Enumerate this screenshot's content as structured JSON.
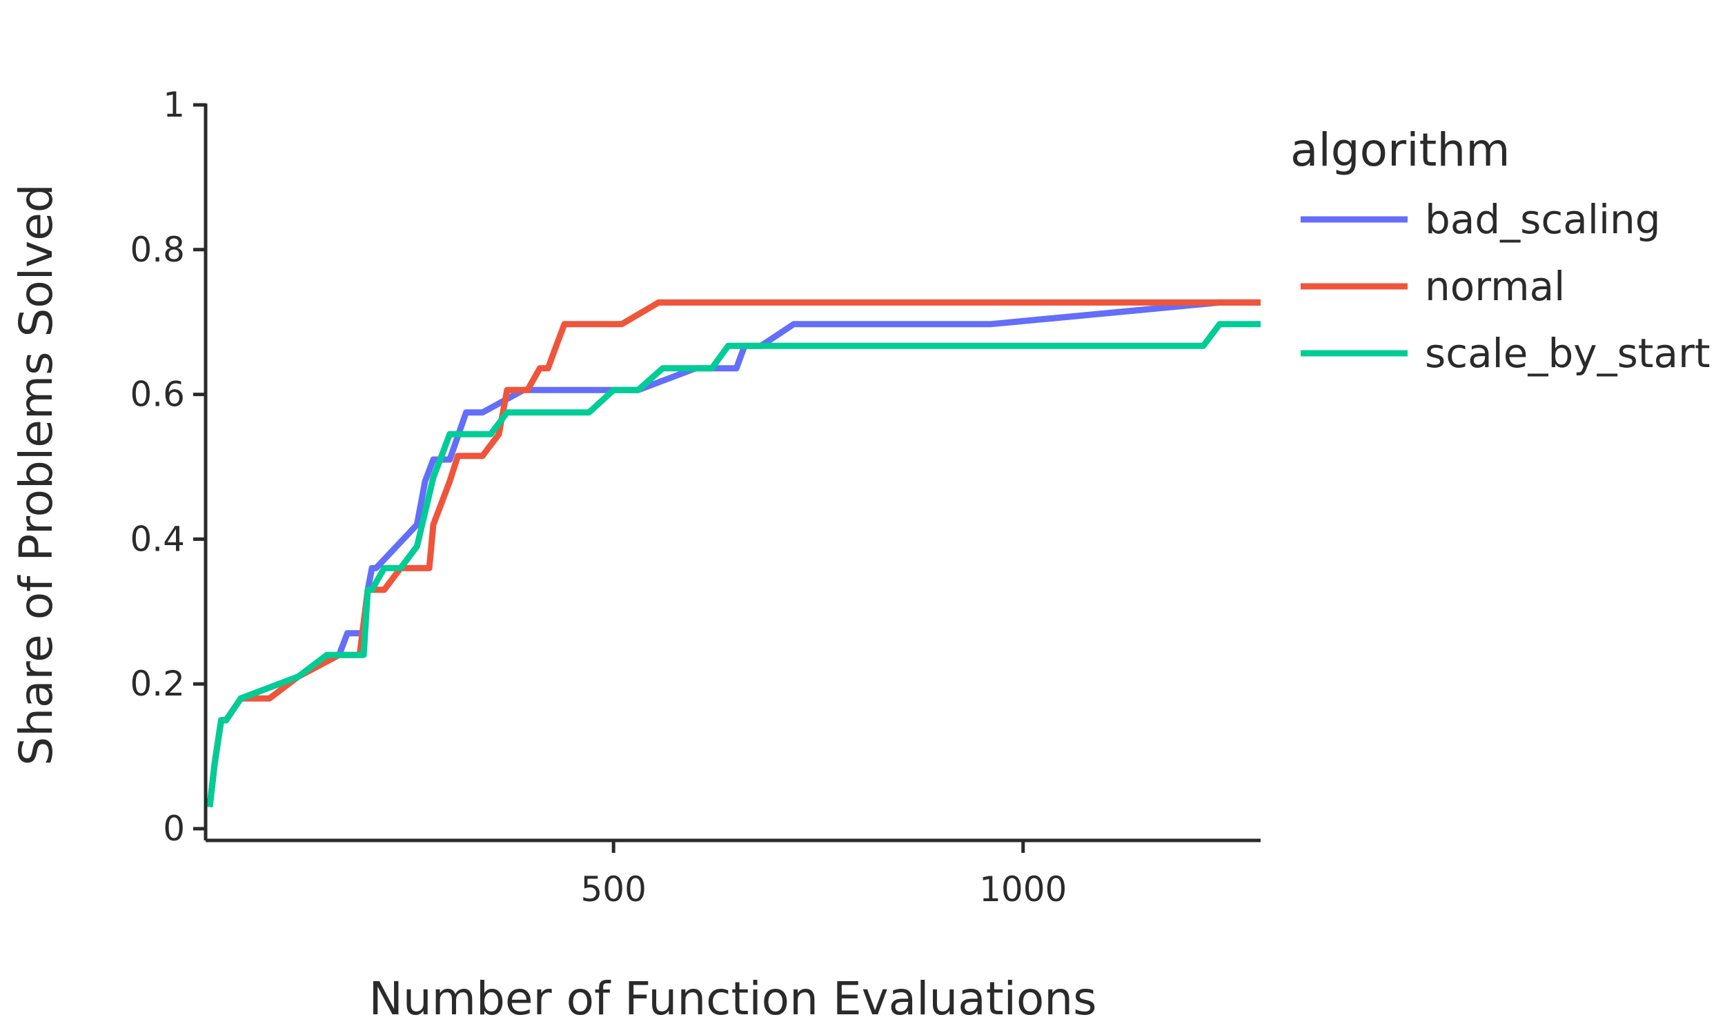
{
  "chart_data": {
    "type": "line",
    "title": "",
    "xlabel": "Number of Function Evaluations",
    "ylabel": "Share of Problems Solved",
    "xlim": [
      2,
      1290
    ],
    "ylim": [
      0,
      1
    ],
    "x_ticks": [
      500,
      1000
    ],
    "x_tick_labels": [
      "500",
      "1000"
    ],
    "y_ticks": [
      0,
      0.2,
      0.4,
      0.6,
      0.8,
      1
    ],
    "y_tick_labels": [
      "0",
      "0.2",
      "0.4",
      "0.6",
      "0.8",
      "1"
    ],
    "grid": false,
    "legend": {
      "title": "algorithm",
      "position": "right-top"
    },
    "series": [
      {
        "name": "bad_scaling",
        "color": "#636efa",
        "x": [
          7,
          13,
          17,
          21,
          27,
          45,
          115,
          165,
          175,
          195,
          200,
          205,
          210,
          260,
          270,
          280,
          300,
          320,
          340,
          390,
          420,
          460,
          530,
          600,
          650,
          660,
          680,
          720,
          960,
          1240,
          1290
        ],
        "y": [
          0.03,
          0.09,
          0.12,
          0.15,
          0.15,
          0.18,
          0.21,
          0.24,
          0.27,
          0.27,
          0.33,
          0.36,
          0.36,
          0.42,
          0.48,
          0.51,
          0.51,
          0.575,
          0.575,
          0.606,
          0.606,
          0.606,
          0.606,
          0.636,
          0.636,
          0.667,
          0.667,
          0.697,
          0.697,
          0.727,
          0.727
        ]
      },
      {
        "name": "normal",
        "color": "#ef553b",
        "x": [
          7,
          13,
          17,
          21,
          27,
          45,
          80,
          115,
          165,
          190,
          200,
          205,
          220,
          240,
          260,
          275,
          280,
          290,
          300,
          310,
          340,
          360,
          370,
          380,
          395,
          410,
          420,
          430,
          440,
          510,
          555,
          600,
          700,
          1000,
          1290
        ],
        "y": [
          0.03,
          0.09,
          0.12,
          0.15,
          0.15,
          0.18,
          0.18,
          0.21,
          0.24,
          0.24,
          0.33,
          0.33,
          0.33,
          0.36,
          0.36,
          0.36,
          0.42,
          0.45,
          0.48,
          0.515,
          0.515,
          0.545,
          0.606,
          0.606,
          0.606,
          0.636,
          0.636,
          0.667,
          0.697,
          0.697,
          0.727,
          0.727,
          0.727,
          0.727,
          0.727
        ]
      },
      {
        "name": "scale_by_start",
        "color": "#00cc96",
        "x": [
          7,
          13,
          17,
          21,
          27,
          45,
          115,
          150,
          195,
          200,
          205,
          220,
          240,
          260,
          280,
          290,
          300,
          350,
          370,
          390,
          420,
          450,
          470,
          500,
          530,
          560,
          600,
          620,
          640,
          660,
          720,
          900,
          1000,
          1220,
          1240,
          1290
        ],
        "y": [
          0.03,
          0.09,
          0.12,
          0.15,
          0.15,
          0.18,
          0.21,
          0.24,
          0.24,
          0.33,
          0.33,
          0.36,
          0.36,
          0.39,
          0.485,
          0.515,
          0.545,
          0.545,
          0.575,
          0.575,
          0.575,
          0.575,
          0.575,
          0.606,
          0.606,
          0.636,
          0.636,
          0.636,
          0.667,
          0.667,
          0.667,
          0.667,
          0.667,
          0.667,
          0.697,
          0.697
        ]
      }
    ]
  }
}
